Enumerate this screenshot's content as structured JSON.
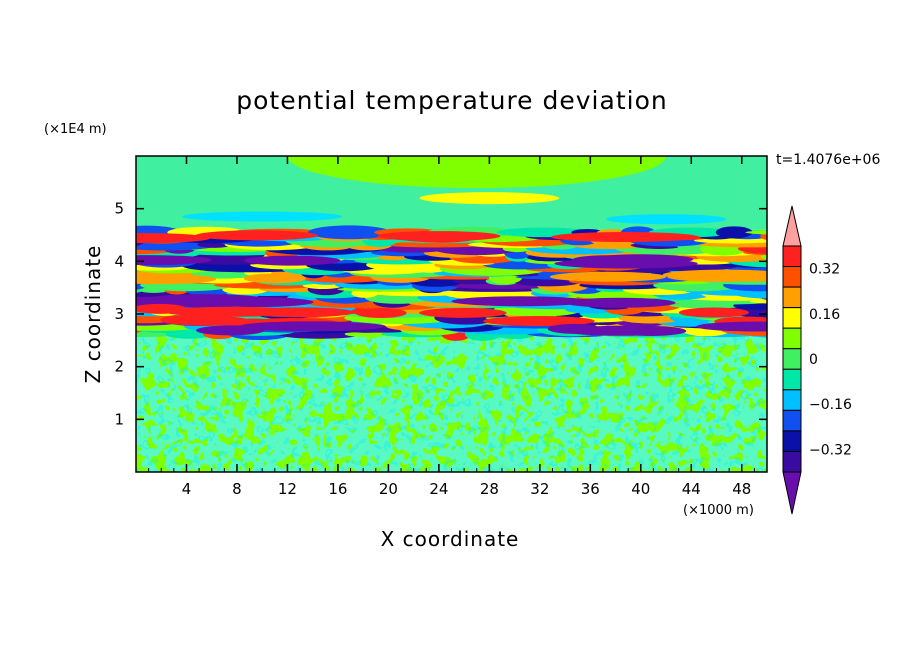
{
  "chart_data": {
    "type": "heatmap",
    "title": "potential temperature deviation",
    "xlabel": "X coordinate",
    "ylabel": "Z coordinate",
    "x_unit": "(×1000 m)",
    "y_unit": "(×1E4 m)",
    "annotation": "t=1.4076e+06",
    "xlim": [
      0,
      50
    ],
    "ylim": [
      0,
      6
    ],
    "x_ticks": [
      4,
      8,
      12,
      16,
      20,
      24,
      28,
      32,
      36,
      40,
      44,
      48
    ],
    "y_ticks": [
      1,
      2,
      3,
      4,
      5
    ],
    "colorbar": {
      "levels": [
        -0.48,
        -0.4,
        -0.32,
        -0.24,
        -0.16,
        -0.08,
        0,
        0.08,
        0.16,
        0.24,
        0.32,
        0.4,
        0.48
      ],
      "tick_labels": [
        "0.32",
        "0.16",
        "0",
        "−0.16",
        "−0.32"
      ],
      "tick_values": [
        0.32,
        0.16,
        0,
        -0.16,
        -0.32
      ],
      "colors": [
        "#6a0dad",
        "#3a0ba0",
        "#0a10a8",
        "#1050f0",
        "#00c0ff",
        "#00e8a8",
        "#40f060",
        "#80ff00",
        "#ffff00",
        "#ffa000",
        "#ff5000",
        "#ff2020",
        "#ffa0a0"
      ]
    },
    "bands": [
      {
        "z": [
          0,
          2.6
        ],
        "description": "small-scale noise, near 0"
      },
      {
        "z": [
          2.6,
          4.6
        ],
        "description": "strong layered perturbations, about ±0.45"
      },
      {
        "z": [
          4.6,
          6.0
        ],
        "description": "smooth weak perturbations, about 0 to 0.1"
      }
    ]
  }
}
